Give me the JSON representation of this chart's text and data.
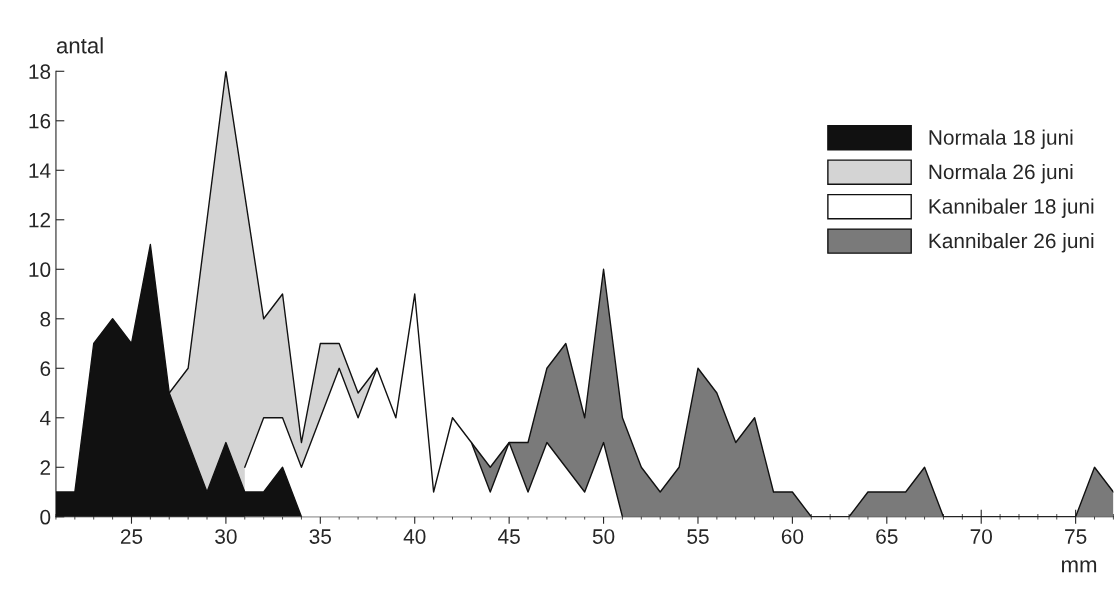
{
  "chart_data": {
    "type": "area",
    "xlabel": "mm",
    "ylabel": "antal",
    "xlim": [
      21,
      77
    ],
    "ylim": [
      0,
      18
    ],
    "xticks": [
      25,
      30,
      35,
      40,
      45,
      50,
      55,
      60,
      65,
      70,
      75
    ],
    "yticks": [
      0,
      2,
      4,
      6,
      8,
      10,
      12,
      14,
      16,
      18
    ],
    "grid": false,
    "legend": "top right",
    "series": [
      {
        "name": "Normala 18 juni",
        "color": "#111111",
        "x": [
          21,
          22,
          23,
          24,
          25,
          26,
          27,
          28,
          29,
          30,
          31,
          32,
          33,
          34
        ],
        "values": [
          1,
          1,
          7,
          8,
          7,
          11,
          5,
          3,
          1,
          3,
          1,
          1,
          2,
          0
        ]
      },
      {
        "name": "Normala 26 juni",
        "color": "#d4d4d4",
        "x": [
          27,
          28,
          29,
          30,
          31,
          32,
          33,
          34,
          35,
          36,
          37,
          38
        ],
        "values": [
          5,
          6,
          12,
          18,
          13,
          8,
          9,
          3,
          7,
          7,
          5,
          6
        ]
      },
      {
        "name": "Kannibaler 18 juni",
        "color": "#ffffff",
        "x": [
          31,
          32,
          33,
          34,
          35,
          36,
          37,
          38,
          39,
          40,
          41,
          42,
          43,
          44,
          45,
          46,
          47,
          48,
          49,
          50,
          51
        ],
        "values": [
          2,
          4,
          4,
          2,
          4,
          6,
          4,
          6,
          4,
          9,
          1,
          4,
          3,
          1,
          3,
          1,
          3,
          2,
          1,
          3,
          0
        ]
      },
      {
        "name": "Kannibaler 26 juni",
        "color": "#7a7a7a",
        "x": [
          43,
          44,
          45,
          46,
          47,
          48,
          49,
          50,
          51,
          52,
          53,
          54,
          55,
          56,
          57,
          58,
          59,
          60,
          61,
          62,
          63,
          64,
          65,
          66,
          67,
          68,
          69,
          70,
          71,
          72,
          73,
          74,
          75,
          76,
          77
        ],
        "values": [
          3,
          2,
          3,
          3,
          6,
          7,
          4,
          10,
          4,
          2,
          1,
          2,
          6,
          5,
          3,
          4,
          1,
          1,
          0,
          0,
          0,
          1,
          1,
          1,
          2,
          0,
          0,
          0,
          0,
          0,
          0,
          0,
          0,
          2,
          1
        ]
      }
    ]
  }
}
